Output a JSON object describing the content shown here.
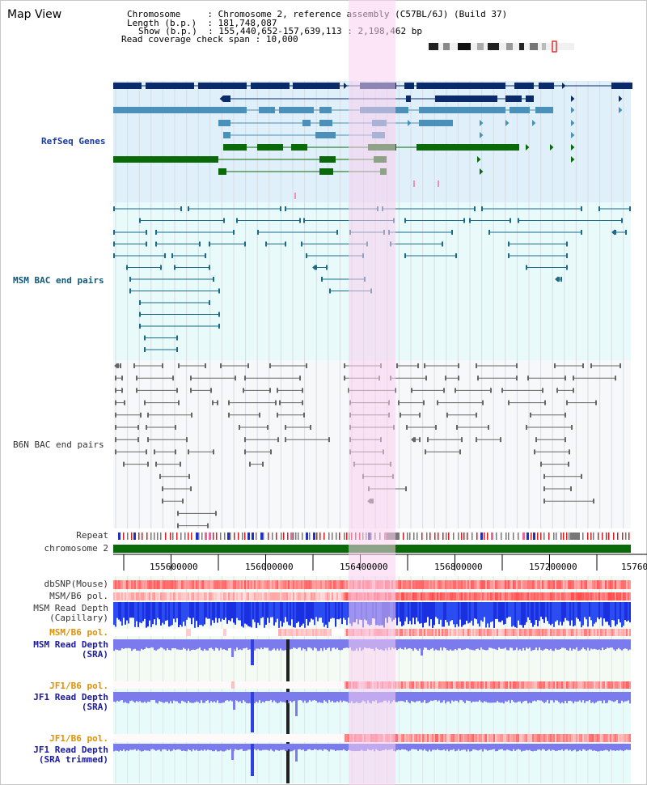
{
  "page": {
    "title": "Map View",
    "info": {
      "chromosome_label": "Chromosome",
      "chromosome_value": "Chromosome 2, reference assembly (C57BL/6J) (Build 37)",
      "length_label": "Length (b.p.)",
      "length_value": "181,748,087",
      "show_label": "Show (b.p.)",
      "show_value": "155,440,652-157,639,113 : 2,198,462 bp",
      "coverage_label": "Read coverage check span",
      "coverage_value": "10,000"
    }
  },
  "tracks": {
    "refseq": "RefSeq Genes",
    "msm_bac": "MSM BAC end pairs",
    "b6n_bac": "B6N BAC end pairs",
    "repeat": "Repeat",
    "chromosome": "chromosome 2",
    "dbsnp": "dbSNP(Mouse)",
    "msm_b6_pol_1": "MSM/B6 pol.",
    "msm_read_depth_cap": "MSM Read Depth\n(Capillary)",
    "msm_b6_pol_2": "MSM/B6 pol.",
    "msm_read_depth_sra": "MSM Read Depth\n(SRA)",
    "jf1_b6_pol_1": "JF1/B6 pol.",
    "jf1_read_depth_sra": "JF1 Read Depth\n(SRA)",
    "jf1_b6_pol_2": "JF1/B6 pol.",
    "jf1_read_depth_trim": "JF1 Read Depth\n(SRA trimmed)"
  },
  "axis": {
    "ticks": [
      "155600000",
      "156000000",
      "156400000",
      "156800000",
      "157200000",
      "15760"
    ]
  },
  "colors": {
    "refseq_dark": "#0a2a6a",
    "refseq_mid": "#4a90b8",
    "refseq_green": "#0a6a0a",
    "refseq_bg": "#dff0fa",
    "msm_bac": "#1a6a8a",
    "msm_bac_bg": "#e8fafa",
    "b6n_bac": "#666666",
    "highlight": "#f9d0ee",
    "read_depth_blue": "#2040e0",
    "read_depth_light": "#8080ee",
    "pol_red": "#e04040"
  }
}
